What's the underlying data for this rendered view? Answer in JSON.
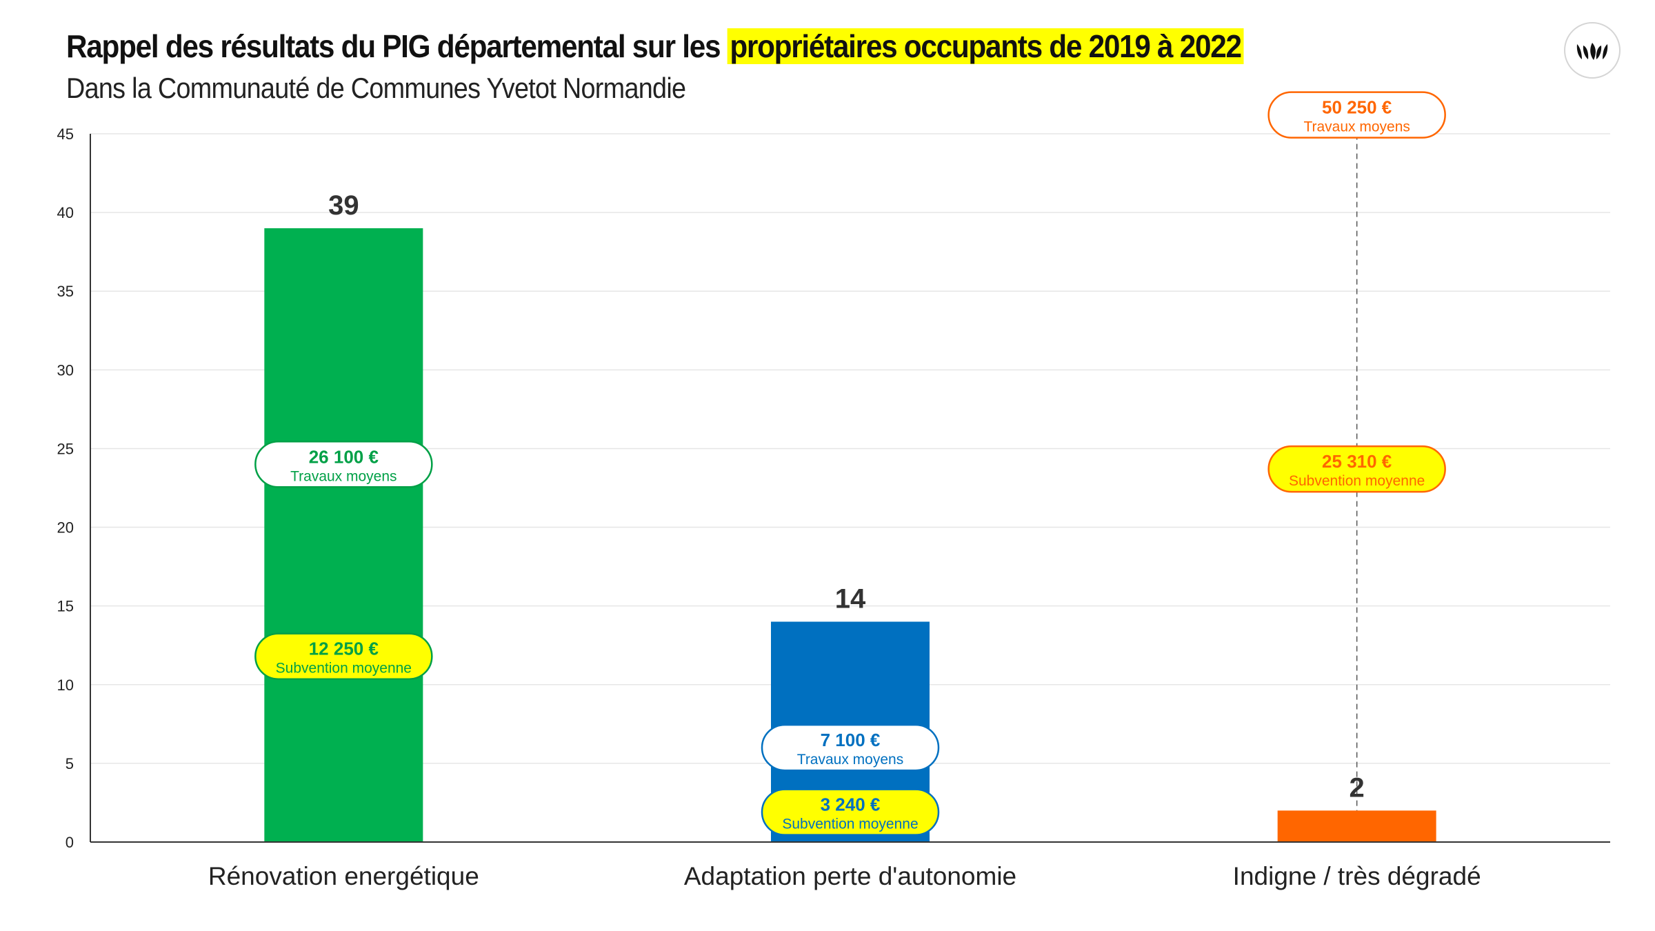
{
  "header": {
    "title_prefix": "Rappel des résultats du PIG départemental sur les",
    "title_highlight": "propriétaires occupants de 2019 à 2022",
    "subtitle": "Dans la Communauté de Communes Yvetot Normandie",
    "logo_icon": "leaves-logo-icon"
  },
  "chart_data": {
    "type": "bar",
    "title": "Rappel des résultats du PIG départemental sur les propriétaires occupants de 2019 à 2022",
    "subtitle": "Dans la Communauté de Communes Yvetot Normandie",
    "xlabel": "",
    "ylabel": "",
    "ylim": [
      0,
      45
    ],
    "yticks": [
      0,
      5,
      10,
      15,
      20,
      25,
      30,
      35,
      40,
      45
    ],
    "grid": true,
    "categories": [
      "Rénovation energétique",
      "Adaptation perte d'autonomie",
      "Indigne / très dégradé"
    ],
    "values": [
      39,
      14,
      2
    ],
    "bar_colors": [
      "#00b050",
      "#0070c0",
      "#ff6600"
    ],
    "annotations": [
      {
        "category": "Rénovation energétique",
        "color": "#00a046",
        "items": [
          {
            "amount": "26 100 €",
            "caption": "Travaux moyens",
            "y": 24,
            "fill": "#ffffff"
          },
          {
            "amount": "12 250 €",
            "caption": "Subvention moyenne",
            "y": 11.8,
            "fill": "#ffff00"
          }
        ]
      },
      {
        "category": "Adaptation perte d'autonomie",
        "color": "#0070c0",
        "items": [
          {
            "amount": "7 100 €",
            "caption": "Travaux moyens",
            "y": 6,
            "fill": "#ffffff"
          },
          {
            "amount": "3 240 €",
            "caption": "Subvention moyenne",
            "y": 1.9,
            "fill": "#ffff00"
          }
        ]
      },
      {
        "category": "Indigne / très dégradé",
        "color": "#ff6600",
        "items": [
          {
            "amount": "50 250 €",
            "caption": "Travaux moyens",
            "y": 46.2,
            "fill": "#ffffff"
          },
          {
            "amount": "25 310 €",
            "caption": "Subvention moyenne",
            "y": 23.7,
            "fill": "#ffff00"
          }
        ]
      }
    ]
  }
}
